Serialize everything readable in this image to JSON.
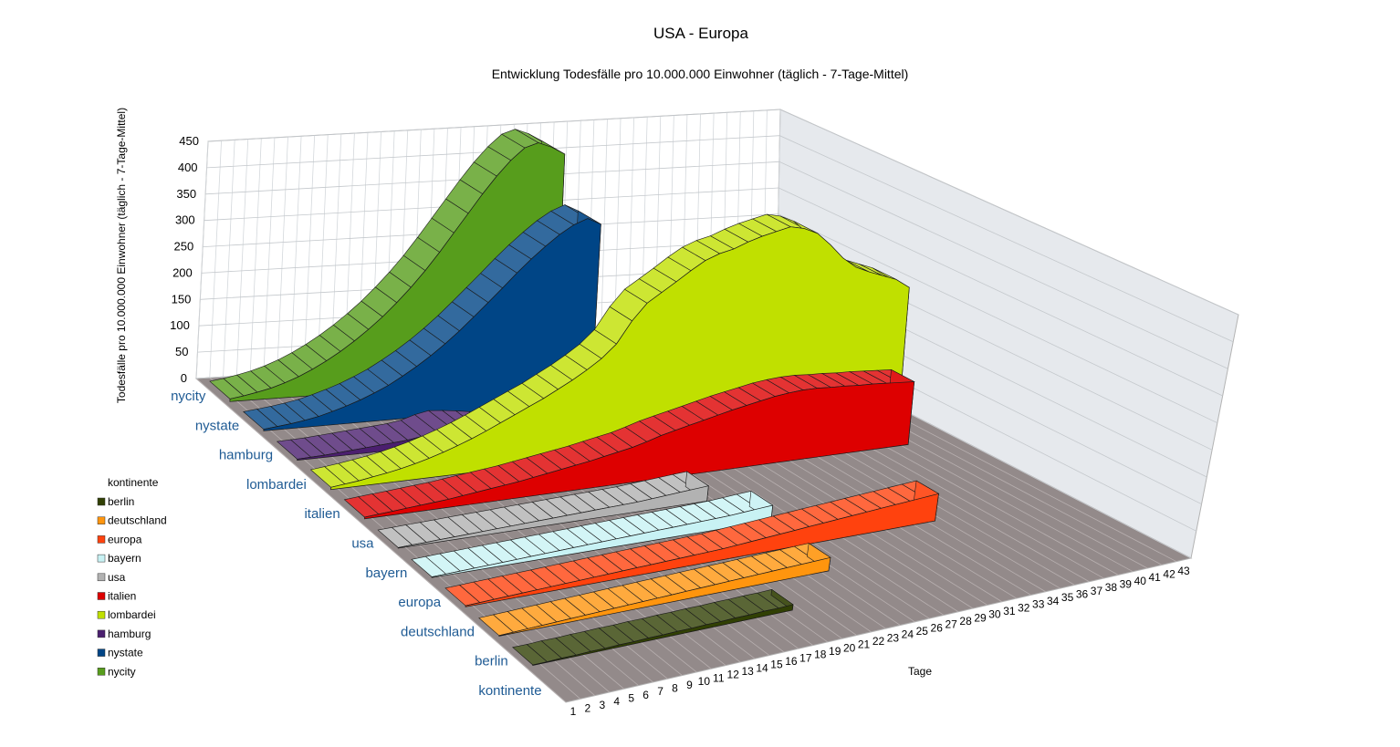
{
  "chart_data": {
    "type": "area3d",
    "title": "USA - Europa",
    "subtitle": "Entwicklung Todesfälle pro 10.000.000 Einwohner (täglich - 7-Tage-Mittel)",
    "y_label": "Todesfälle pro 10.000.000 Einwohner (täglich - 7-Tage-Mittel)",
    "x_label": "Tage",
    "legend_title": "kontinente",
    "categories": [
      1,
      2,
      3,
      4,
      5,
      6,
      7,
      8,
      9,
      10,
      11,
      12,
      13,
      14,
      15,
      16,
      17,
      18,
      19,
      20,
      21,
      22,
      23,
      24,
      25,
      26,
      27,
      28,
      29,
      30,
      31,
      32,
      33,
      34,
      35,
      36,
      37,
      38,
      39,
      40,
      41,
      42,
      43
    ],
    "ylim": [
      0,
      450
    ],
    "yticks": [
      0,
      50,
      100,
      150,
      200,
      250,
      300,
      350,
      400,
      450
    ],
    "grid": true,
    "series": [
      {
        "name": "nycity",
        "color": "#579d1c",
        "values": [
          5,
          9,
          14,
          20,
          28,
          38,
          50,
          64,
          80,
          98,
          118,
          140,
          165,
          192,
          222,
          255,
          290,
          325,
          360,
          392,
          420,
          442,
          450,
          440,
          425,
          null,
          null,
          null,
          null,
          null,
          null,
          null,
          null,
          null,
          null,
          null,
          null,
          null,
          null,
          null,
          null,
          null,
          null
        ]
      },
      {
        "name": "nystate",
        "color": "#004586",
        "values": [
          3,
          6,
          9,
          13,
          18,
          25,
          33,
          42,
          53,
          65,
          80,
          96,
          114,
          134,
          156,
          180,
          205,
          230,
          256,
          280,
          302,
          322,
          338,
          348,
          335,
          null,
          null,
          null,
          null,
          null,
          null,
          null,
          null,
          null,
          null,
          null,
          null,
          null,
          null,
          null,
          null,
          null,
          null
        ]
      },
      {
        "name": "hamburg",
        "color": "#4b1f6f",
        "values": [
          2,
          3,
          4,
          6,
          8,
          10,
          12,
          14,
          16,
          20,
          28,
          33,
          31,
          28,
          24,
          null,
          null,
          null,
          null,
          null,
          null,
          null,
          null,
          null,
          null,
          null,
          null,
          null,
          null,
          null,
          null,
          null,
          null,
          null,
          null,
          null,
          null,
          null,
          null,
          null,
          null,
          null,
          null
        ]
      },
      {
        "name": "lombardei",
        "color": "#c0e000",
        "values": [
          4,
          7,
          10,
          14,
          18,
          23,
          29,
          36,
          44,
          53,
          63,
          74,
          86,
          98,
          110,
          122,
          136,
          150,
          166,
          184,
          208,
          248,
          278,
          295,
          312,
          330,
          346,
          356,
          362,
          372,
          380,
          386,
          392,
          386,
          374,
          350,
          322,
          302,
          290,
          280,
          270,
          252,
          null
        ]
      },
      {
        "name": "italien",
        "color": "#dd0000",
        "values": [
          3,
          5,
          7,
          9,
          11,
          13,
          15,
          18,
          21,
          24,
          27,
          30,
          34,
          38,
          42,
          46,
          50,
          55,
          60,
          65,
          72,
          80,
          86,
          92,
          98,
          104,
          110,
          115,
          120,
          125,
          128,
          130,
          130,
          128,
          127,
          125,
          124,
          122,
          120,
          118,
          null,
          null,
          null
        ]
      },
      {
        "name": "usa",
        "color": "#b2b2b2",
        "values": [
          1,
          2,
          3,
          4,
          5,
          6,
          7,
          8,
          9,
          10,
          11,
          12,
          13,
          14,
          15,
          16,
          17,
          18,
          20,
          22,
          24,
          26,
          28,
          null,
          null,
          null,
          null,
          null,
          null,
          null,
          null,
          null,
          null,
          null,
          null,
          null,
          null,
          null,
          null,
          null,
          null,
          null,
          null
        ]
      },
      {
        "name": "bayern",
        "color": "#c8f2f4",
        "values": [
          1,
          2,
          3,
          4,
          5,
          6,
          7,
          8,
          9,
          10,
          11,
          12,
          13,
          14,
          15,
          16,
          17,
          18,
          19,
          20,
          21,
          22,
          24,
          26,
          28,
          null,
          null,
          null,
          null,
          null,
          null,
          null,
          null,
          null,
          null,
          null,
          null,
          null,
          null,
          null,
          null,
          null,
          null
        ]
      },
      {
        "name": "europa",
        "color": "#ff420e",
        "values": [
          2,
          3,
          4,
          5,
          6,
          7,
          8,
          9,
          10,
          11,
          12,
          13,
          14,
          15,
          16,
          17,
          18,
          19,
          20,
          22,
          24,
          26,
          28,
          30,
          32,
          34,
          36,
          38,
          40,
          42,
          44,
          46,
          48,
          50,
          null,
          null,
          null,
          null,
          null,
          null,
          null,
          null,
          null
        ]
      },
      {
        "name": "deutschland",
        "color": "#ff950e",
        "values": [
          1,
          2,
          3,
          4,
          5,
          6,
          7,
          8,
          9,
          10,
          11,
          12,
          13,
          14,
          15,
          16,
          17,
          18,
          19,
          20,
          21,
          22,
          23,
          24,
          null,
          null,
          null,
          null,
          null,
          null,
          null,
          null,
          null,
          null,
          null,
          null,
          null,
          null,
          null,
          null,
          null,
          null,
          null
        ]
      },
      {
        "name": "berlin",
        "color": "#314004",
        "values": [
          1,
          1,
          2,
          2,
          3,
          3,
          4,
          4,
          5,
          5,
          6,
          6,
          7,
          7,
          8,
          8,
          9,
          9,
          10,
          null,
          null,
          null,
          null,
          null,
          null,
          null,
          null,
          null,
          null,
          null,
          null,
          null,
          null,
          null,
          null,
          null,
          null,
          null,
          null,
          null,
          null,
          null,
          null
        ]
      }
    ]
  }
}
